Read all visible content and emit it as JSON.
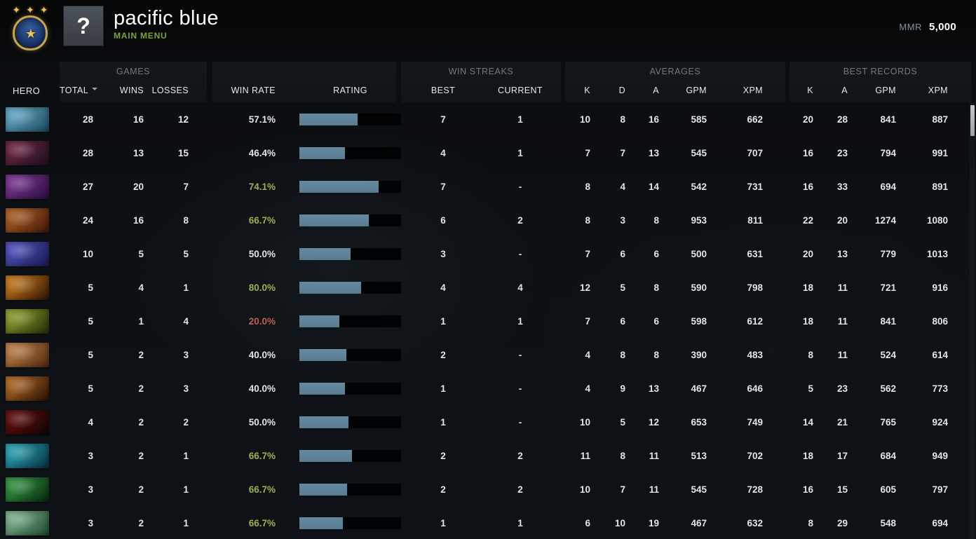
{
  "topbar": {
    "player_name": "pacific blue",
    "menu_label": "MAIN MENU",
    "avatar_symbol": "?",
    "mmr_label": "MMR",
    "mmr_value": "5,000",
    "rank_medal_icon": "immortal-rank-medal",
    "crown_glyph": "✦ ✦ ✦",
    "star_glyph": "★"
  },
  "colors": {
    "win_rate_positive": "#96b14d",
    "win_rate_negative": "#c05f4a",
    "rating_bar_fill": "#5d8196",
    "menu_green": "#7ca32f"
  },
  "table": {
    "groups": {
      "games": "GAMES",
      "streaks": "WIN STREAKS",
      "averages": "AVERAGES",
      "records": "BEST RECORDS"
    },
    "columns": {
      "hero": "HERO",
      "total": "TOTAL",
      "wins": "WINS",
      "losses": "LOSSES",
      "win_rate": "WIN RATE",
      "rating": "RATING",
      "best": "BEST",
      "current": "CURRENT",
      "k": "K",
      "d": "D",
      "a": "A",
      "gpm": "GPM",
      "xpm": "XPM",
      "k2": "K",
      "a2": "A",
      "gpm2": "GPM",
      "xpm2": "XPM"
    },
    "rows": [
      {
        "total": "28",
        "wins": "16",
        "losses": "12",
        "win_rate": "57.1%",
        "win_rate_class": "neutral",
        "rating_pct": 57,
        "streak_best": "7",
        "streak_current": "1",
        "avg_k": "10",
        "avg_d": "8",
        "avg_a": "16",
        "avg_gpm": "585",
        "avg_xpm": "662",
        "best_k": "20",
        "best_a": "28",
        "best_gpm": "841",
        "best_xpm": "887",
        "portrait": [
          "#6db8d8",
          "#1e4a5e"
        ]
      },
      {
        "total": "28",
        "wins": "13",
        "losses": "15",
        "win_rate": "46.4%",
        "win_rate_class": "neutral",
        "rating_pct": 45,
        "streak_best": "4",
        "streak_current": "1",
        "avg_k": "7",
        "avg_d": "7",
        "avg_a": "13",
        "avg_gpm": "545",
        "avg_xpm": "707",
        "best_k": "16",
        "best_a": "23",
        "best_gpm": "794",
        "best_xpm": "991",
        "portrait": [
          "#7a2a4a",
          "#1e1020"
        ]
      },
      {
        "total": "27",
        "wins": "20",
        "losses": "7",
        "win_rate": "74.1%",
        "win_rate_class": "pos",
        "rating_pct": 78,
        "streak_best": "7",
        "streak_current": "-",
        "avg_k": "8",
        "avg_d": "4",
        "avg_a": "14",
        "avg_gpm": "542",
        "avg_xpm": "731",
        "best_k": "16",
        "best_a": "33",
        "best_gpm": "694",
        "best_xpm": "891",
        "portrait": [
          "#8a3aa0",
          "#2a1040"
        ]
      },
      {
        "total": "24",
        "wins": "16",
        "losses": "8",
        "win_rate": "66.7%",
        "win_rate_class": "pos",
        "rating_pct": 68,
        "streak_best": "6",
        "streak_current": "2",
        "avg_k": "8",
        "avg_d": "3",
        "avg_a": "8",
        "avg_gpm": "953",
        "avg_xpm": "811",
        "best_k": "22",
        "best_a": "20",
        "best_gpm": "1274",
        "best_xpm": "1080",
        "portrait": [
          "#c06a2a",
          "#401808"
        ]
      },
      {
        "total": "10",
        "wins": "5",
        "losses": "5",
        "win_rate": "50.0%",
        "win_rate_class": "neutral",
        "rating_pct": 50,
        "streak_best": "3",
        "streak_current": "-",
        "avg_k": "7",
        "avg_d": "6",
        "avg_a": "6",
        "avg_gpm": "500",
        "avg_xpm": "631",
        "best_k": "20",
        "best_a": "13",
        "best_gpm": "779",
        "best_xpm": "1013",
        "portrait": [
          "#5a5ad0",
          "#181c50"
        ]
      },
      {
        "total": "5",
        "wins": "4",
        "losses": "1",
        "win_rate": "80.0%",
        "win_rate_class": "pos",
        "rating_pct": 61,
        "streak_best": "4",
        "streak_current": "4",
        "avg_k": "12",
        "avg_d": "5",
        "avg_a": "8",
        "avg_gpm": "590",
        "avg_xpm": "798",
        "best_k": "18",
        "best_a": "11",
        "best_gpm": "721",
        "best_xpm": "916",
        "portrait": [
          "#e08a20",
          "#301505"
        ]
      },
      {
        "total": "5",
        "wins": "1",
        "losses": "4",
        "win_rate": "20.0%",
        "win_rate_class": "neg",
        "rating_pct": 39,
        "streak_best": "1",
        "streak_current": "1",
        "avg_k": "7",
        "avg_d": "6",
        "avg_a": "6",
        "avg_gpm": "598",
        "avg_xpm": "612",
        "best_k": "18",
        "best_a": "11",
        "best_gpm": "841",
        "best_xpm": "806",
        "portrait": [
          "#a0b030",
          "#203008"
        ]
      },
      {
        "total": "5",
        "wins": "2",
        "losses": "3",
        "win_rate": "40.0%",
        "win_rate_class": "neutral",
        "rating_pct": 46,
        "streak_best": "2",
        "streak_current": "-",
        "avg_k": "4",
        "avg_d": "8",
        "avg_a": "8",
        "avg_gpm": "390",
        "avg_xpm": "483",
        "best_k": "8",
        "best_a": "11",
        "best_gpm": "524",
        "best_xpm": "614",
        "portrait": [
          "#d09050",
          "#502810"
        ]
      },
      {
        "total": "5",
        "wins": "2",
        "losses": "3",
        "win_rate": "40.0%",
        "win_rate_class": "neutral",
        "rating_pct": 45,
        "streak_best": "1",
        "streak_current": "-",
        "avg_k": "4",
        "avg_d": "9",
        "avg_a": "13",
        "avg_gpm": "467",
        "avg_xpm": "646",
        "best_k": "5",
        "best_a": "23",
        "best_gpm": "562",
        "best_xpm": "773",
        "portrait": [
          "#c87828",
          "#281005"
        ]
      },
      {
        "total": "4",
        "wins": "2",
        "losses": "2",
        "win_rate": "50.0%",
        "win_rate_class": "neutral",
        "rating_pct": 48,
        "streak_best": "1",
        "streak_current": "-",
        "avg_k": "10",
        "avg_d": "5",
        "avg_a": "12",
        "avg_gpm": "653",
        "avg_xpm": "749",
        "best_k": "14",
        "best_a": "21",
        "best_gpm": "765",
        "best_xpm": "924",
        "portrait": [
          "#701010",
          "#100404"
        ]
      },
      {
        "total": "3",
        "wins": "2",
        "losses": "1",
        "win_rate": "66.7%",
        "win_rate_class": "pos",
        "rating_pct": 52,
        "streak_best": "2",
        "streak_current": "2",
        "avg_k": "11",
        "avg_d": "8",
        "avg_a": "11",
        "avg_gpm": "513",
        "avg_xpm": "702",
        "best_k": "18",
        "best_a": "17",
        "best_gpm": "684",
        "best_xpm": "949",
        "portrait": [
          "#30b8c8",
          "#083040"
        ]
      },
      {
        "total": "3",
        "wins": "2",
        "losses": "1",
        "win_rate": "66.7%",
        "win_rate_class": "pos",
        "rating_pct": 47,
        "streak_best": "2",
        "streak_current": "2",
        "avg_k": "10",
        "avg_d": "7",
        "avg_a": "11",
        "avg_gpm": "545",
        "avg_xpm": "728",
        "best_k": "16",
        "best_a": "15",
        "best_gpm": "605",
        "best_xpm": "797",
        "portrait": [
          "#38a848",
          "#0a2810"
        ]
      },
      {
        "total": "3",
        "wins": "2",
        "losses": "1",
        "win_rate": "66.7%",
        "win_rate_class": "pos",
        "rating_pct": 43,
        "streak_best": "1",
        "streak_current": "1",
        "avg_k": "6",
        "avg_d": "10",
        "avg_a": "19",
        "avg_gpm": "467",
        "avg_xpm": "632",
        "best_k": "8",
        "best_a": "29",
        "best_gpm": "548",
        "best_xpm": "694",
        "portrait": [
          "#90c8a0",
          "#204830"
        ]
      }
    ]
  }
}
